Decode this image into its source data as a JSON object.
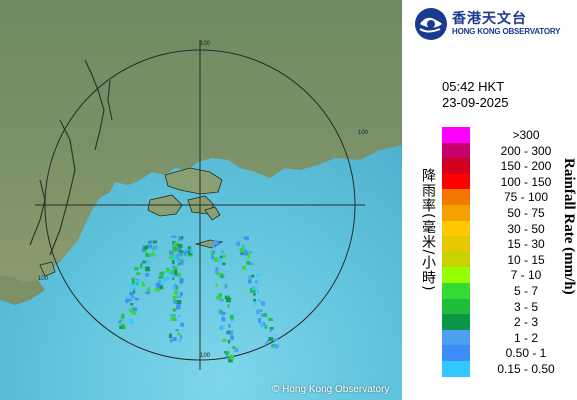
{
  "map": {
    "copyright": "© Hong Kong Observatory",
    "range_rings": [
      {
        "label": "100"
      },
      {
        "label": "100"
      },
      {
        "label": "100"
      },
      {
        "label": "100"
      }
    ]
  },
  "header": {
    "logo_cn": "香港天文台",
    "logo_en": "HONG KONG OBSERVATORY",
    "logo_icon": "hko-logo-icon"
  },
  "timestamp": {
    "time": "05:42 HKT",
    "date": "23-09-2025"
  },
  "legend": {
    "title_cn": "降雨率(毫米/小時)",
    "title_en": "Rainfall Rate (mm/h)",
    "items": [
      {
        "label": ">300",
        "color": "#ff00ff"
      },
      {
        "label": "200 - 300",
        "color": "#c8006e"
      },
      {
        "label": "150 - 200",
        "color": "#d2001e"
      },
      {
        "label": "100 - 150",
        "color": "#ff0000"
      },
      {
        "label": "75 - 100",
        "color": "#f07800"
      },
      {
        "label": "50 - 75",
        "color": "#f5a000"
      },
      {
        "label": "30 - 50",
        "color": "#ffc800"
      },
      {
        "label": "15 - 30",
        "color": "#e6c800"
      },
      {
        "label": "10 - 15",
        "color": "#c8d200"
      },
      {
        "label": "7 - 10",
        "color": "#96ff00"
      },
      {
        "label": "5 - 7",
        "color": "#32dc32"
      },
      {
        "label": "3 - 5",
        "color": "#1ebe3c"
      },
      {
        "label": "2 - 3",
        "color": "#0a9646"
      },
      {
        "label": "1 - 2",
        "color": "#4ba0f0"
      },
      {
        "label": "0.50 - 1",
        "color": "#3c8cfa"
      },
      {
        "label": "0.15 - 0.50",
        "color": "#32c8ff"
      }
    ]
  }
}
